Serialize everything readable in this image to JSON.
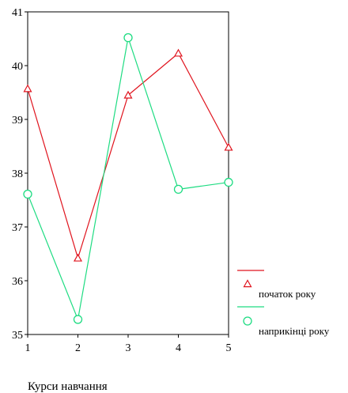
{
  "chart_data": {
    "type": "line",
    "title": "",
    "xlabel": "Курси навчання",
    "ylabel": "",
    "x": [
      1,
      2,
      3,
      4,
      5
    ],
    "xticks": [
      "1",
      "2",
      "3",
      "4",
      "5"
    ],
    "yticks": [
      "35",
      "36",
      "37",
      "38",
      "39",
      "40",
      "41"
    ],
    "xlim": [
      1,
      5
    ],
    "ylim": [
      35,
      41
    ],
    "grid": false,
    "legend_position": "right",
    "series": [
      {
        "name": "початок року",
        "values": [
          39.57,
          36.42,
          39.45,
          40.23,
          38.48
        ],
        "color": "#e0141e",
        "marker": "triangle"
      },
      {
        "name": "наприкінці року",
        "values": [
          37.61,
          35.28,
          40.52,
          37.7,
          37.83
        ],
        "color": "#1edc82",
        "marker": "circle"
      }
    ]
  }
}
